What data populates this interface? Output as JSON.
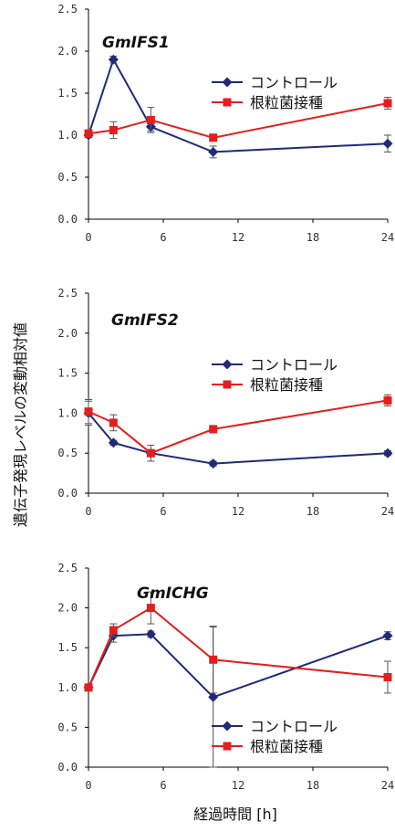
{
  "chart_data": [
    {
      "type": "line",
      "title": "GmIFS1",
      "x": [
        0,
        2,
        5,
        10,
        24
      ],
      "xticks": [
        "0",
        "6",
        "12",
        "18",
        "24"
      ],
      "yticks": [
        "0.0",
        "0.5",
        "1.0",
        "1.5",
        "2.0",
        "2.5"
      ],
      "xlim": [
        0,
        24
      ],
      "ylim": [
        0,
        2.5
      ],
      "legend_position": "right",
      "series": [
        {
          "name": "コントロール",
          "color": "#1f2a7a",
          "marker": "diamond",
          "values": [
            1.0,
            1.9,
            1.1,
            0.8,
            0.9
          ],
          "errors": [
            0.03,
            0.04,
            0.05,
            0.07,
            0.1
          ]
        },
        {
          "name": "根粒菌接種",
          "color": "#e41e1e",
          "marker": "square",
          "values": [
            1.02,
            1.06,
            1.18,
            0.97,
            1.38
          ],
          "errors": [
            0.03,
            0.1,
            0.15,
            0.04,
            0.07
          ]
        }
      ]
    },
    {
      "type": "line",
      "title": "GmIFS2",
      "x": [
        0,
        2,
        5,
        10,
        24
      ],
      "xticks": [
        "0",
        "6",
        "12",
        "18",
        "24"
      ],
      "yticks": [
        "0.0",
        "0.5",
        "1.0",
        "1.5",
        "2.0",
        "2.5"
      ],
      "xlim": [
        0,
        24
      ],
      "ylim": [
        0,
        2.5
      ],
      "legend_position": "right",
      "series": [
        {
          "name": "コントロール",
          "color": "#1f2a7a",
          "marker": "diamond",
          "values": [
            1.0,
            0.63,
            0.5,
            0.37,
            0.5
          ],
          "errors": [
            0.15,
            0.03,
            0.04,
            0.03,
            0.03
          ]
        },
        {
          "name": "根粒菌接種",
          "color": "#e41e1e",
          "marker": "square",
          "values": [
            1.02,
            0.88,
            0.5,
            0.8,
            1.16
          ],
          "errors": [
            0.15,
            0.1,
            0.1,
            0.04,
            0.07
          ]
        }
      ]
    },
    {
      "type": "line",
      "title": "GmICHG",
      "x": [
        0,
        2,
        5,
        10,
        24
      ],
      "xticks": [
        "0",
        "6",
        "12",
        "18",
        "24"
      ],
      "yticks": [
        "0.0",
        "0.5",
        "1.0",
        "1.5",
        "2.0",
        "2.5"
      ],
      "xlim": [
        0,
        24
      ],
      "ylim": [
        0,
        2.5
      ],
      "legend_position": "bottom-right",
      "series": [
        {
          "name": "コントロール",
          "color": "#1f2a7a",
          "marker": "diamond",
          "values": [
            1.0,
            1.65,
            1.67,
            0.88,
            1.65
          ],
          "errors": [
            0.04,
            0.08,
            0.04,
            0.88,
            0.05
          ]
        },
        {
          "name": "根粒菌接種",
          "color": "#e41e1e",
          "marker": "square",
          "values": [
            1.0,
            1.72,
            2.0,
            1.35,
            1.13
          ],
          "errors": [
            0.04,
            0.08,
            0.2,
            0.42,
            0.2
          ]
        }
      ]
    }
  ],
  "labels": {
    "y_axis": "遺伝子発現レベルの変動相対値",
    "x_axis": "経過時間 [h]"
  }
}
